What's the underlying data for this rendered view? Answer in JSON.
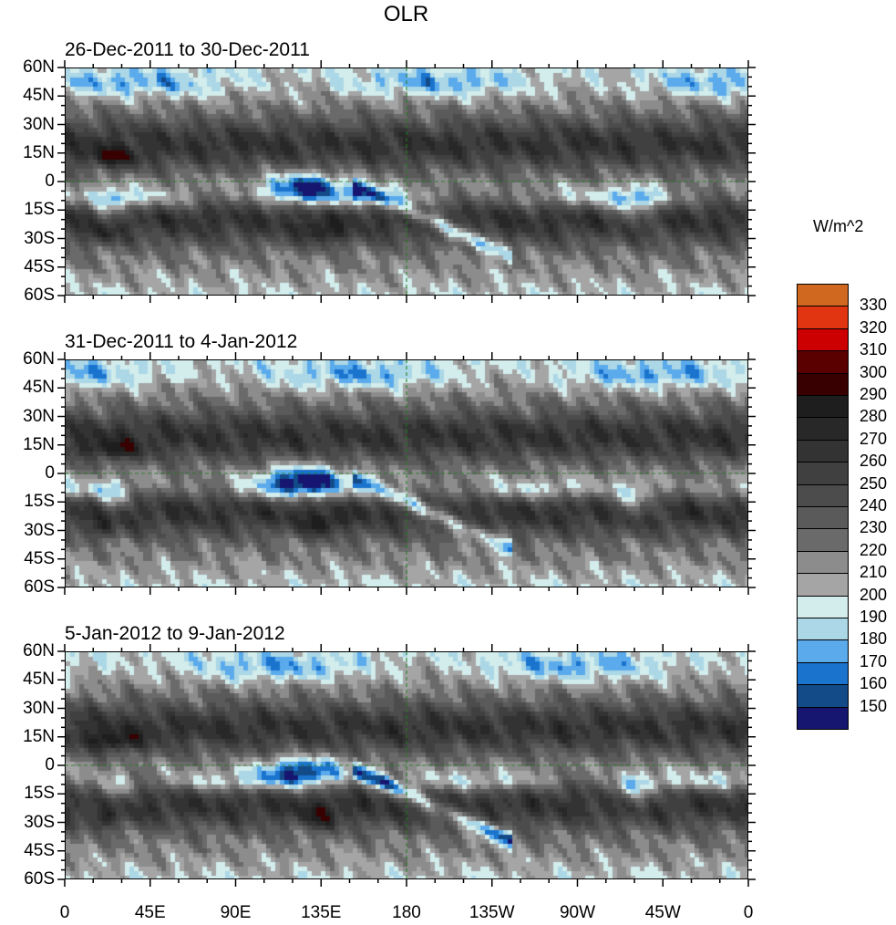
{
  "chart_data": {
    "type": "heatmap",
    "title": "OLR",
    "units_label": "W/m^2",
    "panels": [
      {
        "title": "26-Dec-2011 to 30-Dec-2011"
      },
      {
        "title": "31-Dec-2011 to 4-Jan-2012"
      },
      {
        "title": "5-Jan-2012 to 9-Jan-2012"
      }
    ],
    "x_tick_labels": [
      "0",
      "45E",
      "90E",
      "135E",
      "180",
      "135W",
      "90W",
      "45W",
      "0"
    ],
    "y_tick_labels": [
      "60N",
      "45N",
      "30N",
      "15N",
      "0",
      "15S",
      "30S",
      "45S",
      "60S"
    ],
    "xlim": [
      0,
      360
    ],
    "ylim": [
      -60,
      60
    ],
    "colorbar": {
      "levels": [
        150,
        160,
        170,
        180,
        190,
        200,
        210,
        220,
        230,
        240,
        250,
        260,
        270,
        280,
        290,
        300,
        310,
        320,
        330
      ],
      "level_labels": [
        "330",
        "320",
        "310",
        "300",
        "290",
        "280",
        "270",
        "260",
        "250",
        "240",
        "230",
        "220",
        "210",
        "200",
        "190",
        "180",
        "170",
        "160",
        "150"
      ],
      "colors": [
        "#161670",
        "#134a88",
        "#1a73cd",
        "#5aaaec",
        "#acd7e6",
        "#d3ecec",
        "#a5a5a5",
        "#8c8c8c",
        "#6a6a6a",
        "#5a5a5a",
        "#4c4c4c",
        "#404040",
        "#333333",
        "#282828",
        "#1e1e1e",
        "#380000",
        "#5a0000",
        "#cc0000",
        "#e03510",
        "#d06820"
      ]
    },
    "coastline_color": "#1e7e1e"
  }
}
